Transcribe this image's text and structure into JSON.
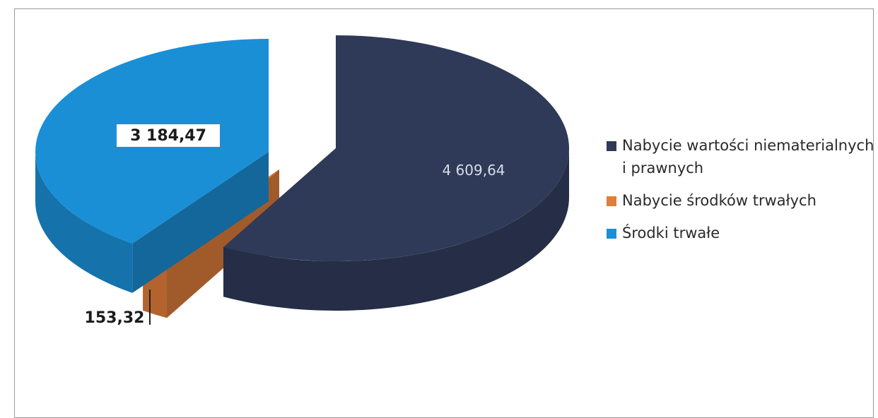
{
  "chart_data": {
    "type": "pie",
    "style": "3d-exploded",
    "categories": [
      "Nabycie wartości niematerialnych i prawnych",
      "Nabycie środków trwałych",
      "Środki trwałe"
    ],
    "values": [
      4609.64,
      153.32,
      3184.47
    ],
    "data_labels": [
      "4 609,64",
      "153,32",
      "3 184,47"
    ],
    "colors": [
      "#2e3a57",
      "#e07d3a",
      "#1a8fd6"
    ],
    "legend_position": "right"
  }
}
